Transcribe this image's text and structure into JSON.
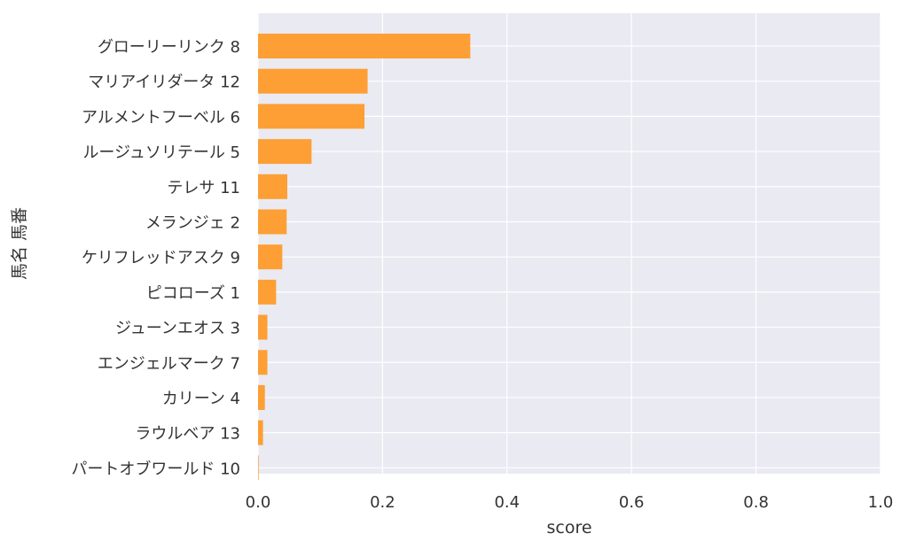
{
  "chart_data": {
    "type": "bar",
    "orientation": "horizontal",
    "title": "",
    "xlabel": "score",
    "ylabel": "馬名 馬番",
    "xlim": [
      0,
      1.0
    ],
    "xticks": [
      "0.0",
      "0.2",
      "0.4",
      "0.6",
      "0.8",
      "1.0"
    ],
    "grid": true,
    "bar_color": "#fd9f35",
    "background_color": "#eaeaf2",
    "categories": [
      "グローリーリンク 8",
      "マリアイリダータ 12",
      "アルメントフーベル 6",
      "ルージュソリテール 5",
      "テレサ 11",
      "メランジェ 2",
      "ケリフレッドアスク 9",
      "ピコローズ 1",
      "ジューンエオス 3",
      "エンジェルマーク 7",
      "カリーン 4",
      "ラウルベア 13",
      "パートオブワールド 10"
    ],
    "values": [
      0.341,
      0.176,
      0.171,
      0.086,
      0.047,
      0.046,
      0.039,
      0.029,
      0.015,
      0.015,
      0.011,
      0.008,
      0.001
    ]
  }
}
